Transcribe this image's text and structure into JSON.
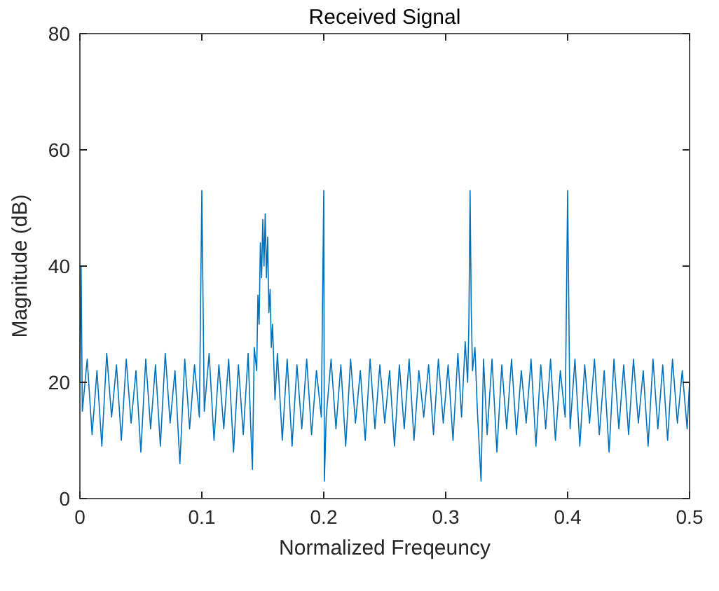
{
  "chart_data": {
    "type": "line",
    "title": "Received Signal",
    "xlabel": "Normalized Freqeuncy",
    "ylabel": "Magnitude (dB)",
    "xlim": [
      0,
      0.5
    ],
    "xticks": [
      0,
      0.1,
      0.2,
      0.3,
      0.4,
      0.5
    ],
    "ylim": [
      0,
      80
    ],
    "yticks": [
      0,
      20,
      40,
      60,
      80
    ],
    "grid": false,
    "marker": "none",
    "line_style": "solid",
    "series": [
      {
        "color": "#0072bd",
        "x": [
          0,
          0.001,
          0.002,
          0.006,
          0.01,
          0.014,
          0.018,
          0.022,
          0.026,
          0.03,
          0.034,
          0.038,
          0.042,
          0.046,
          0.05,
          0.054,
          0.058,
          0.062,
          0.066,
          0.07,
          0.074,
          0.078,
          0.082,
          0.086,
          0.09,
          0.094,
          0.098,
          0.1,
          0.102,
          0.106,
          0.11,
          0.114,
          0.118,
          0.122,
          0.126,
          0.13,
          0.134,
          0.138,
          0.14,
          0.1415,
          0.143,
          0.145,
          0.146,
          0.147,
          0.148,
          0.149,
          0.15,
          0.151,
          0.152,
          0.153,
          0.154,
          0.155,
          0.156,
          0.157,
          0.158,
          0.16,
          0.162,
          0.166,
          0.17,
          0.174,
          0.178,
          0.182,
          0.186,
          0.19,
          0.194,
          0.198,
          0.2,
          0.2005,
          0.202,
          0.206,
          0.21,
          0.214,
          0.218,
          0.222,
          0.226,
          0.23,
          0.234,
          0.238,
          0.242,
          0.246,
          0.25,
          0.254,
          0.258,
          0.262,
          0.266,
          0.27,
          0.274,
          0.278,
          0.282,
          0.286,
          0.29,
          0.294,
          0.298,
          0.302,
          0.306,
          0.31,
          0.313,
          0.316,
          0.318,
          0.319,
          0.32,
          0.321,
          0.322,
          0.324,
          0.326,
          0.329,
          0.331,
          0.334,
          0.338,
          0.342,
          0.346,
          0.35,
          0.354,
          0.358,
          0.362,
          0.366,
          0.37,
          0.374,
          0.378,
          0.382,
          0.386,
          0.39,
          0.394,
          0.398,
          0.4,
          0.402,
          0.406,
          0.41,
          0.414,
          0.418,
          0.422,
          0.426,
          0.43,
          0.434,
          0.438,
          0.442,
          0.446,
          0.45,
          0.454,
          0.458,
          0.462,
          0.466,
          0.47,
          0.474,
          0.478,
          0.482,
          0.486,
          0.49,
          0.494,
          0.498,
          0.5
        ],
        "values": [
          20,
          40,
          15,
          24,
          11,
          22,
          9,
          25,
          14,
          23,
          10,
          24,
          13,
          22,
          8,
          24,
          12,
          23,
          9,
          25,
          13,
          22,
          6,
          24,
          12,
          23,
          14,
          53,
          15,
          25,
          10,
          23,
          12,
          24,
          8,
          23,
          11,
          25,
          13,
          5,
          26,
          22,
          35,
          30,
          44,
          38,
          48,
          40,
          49,
          38,
          45,
          32,
          36,
          26,
          30,
          17,
          25,
          10,
          24,
          9,
          23,
          12,
          24,
          11,
          22,
          14,
          53,
          3,
          14,
          24,
          12,
          23,
          9,
          24,
          13,
          22,
          10,
          24,
          12,
          23,
          13,
          22,
          9,
          23,
          12,
          24,
          10,
          22,
          14,
          23,
          11,
          24,
          13,
          23,
          10,
          25,
          14,
          27,
          20,
          30,
          53,
          32,
          22,
          26,
          15,
          3,
          24,
          11,
          24,
          8,
          23,
          12,
          24,
          11,
          22,
          13,
          24,
          9,
          23,
          12,
          24,
          10,
          22,
          14,
          53,
          12,
          24,
          9,
          23,
          13,
          24,
          11,
          22,
          8,
          24,
          12,
          23,
          11,
          24,
          13,
          22,
          9,
          24,
          12,
          23,
          10,
          24,
          13,
          22,
          12,
          20
        ]
      }
    ]
  }
}
